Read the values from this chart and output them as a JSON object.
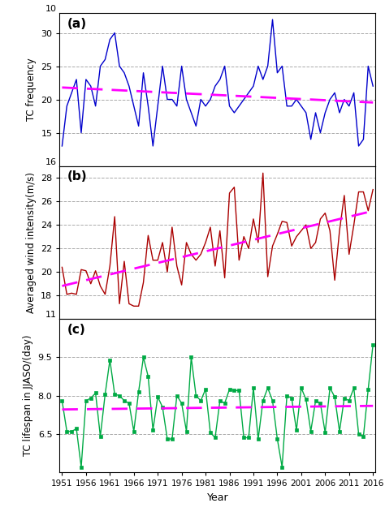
{
  "years": [
    1951,
    1952,
    1953,
    1954,
    1955,
    1956,
    1957,
    1958,
    1959,
    1960,
    1961,
    1962,
    1963,
    1964,
    1965,
    1966,
    1967,
    1968,
    1969,
    1970,
    1971,
    1972,
    1973,
    1974,
    1975,
    1976,
    1977,
    1978,
    1979,
    1980,
    1981,
    1982,
    1983,
    1984,
    1985,
    1986,
    1987,
    1988,
    1989,
    1990,
    1991,
    1992,
    1993,
    1994,
    1995,
    1996,
    1997,
    1998,
    1999,
    2000,
    2001,
    2002,
    2003,
    2004,
    2005,
    2006,
    2007,
    2008,
    2009,
    2010,
    2011,
    2012,
    2013,
    2014,
    2015,
    2016
  ],
  "tc_freq": [
    13,
    19,
    21,
    23,
    15,
    23,
    22,
    19,
    25,
    26,
    29,
    30,
    25,
    24,
    22,
    19,
    16,
    24,
    19,
    13,
    19,
    25,
    20,
    20,
    19,
    25,
    20,
    18,
    16,
    20,
    19,
    20,
    22,
    23,
    25,
    19,
    18,
    19,
    20,
    21,
    22,
    25,
    23,
    25,
    32,
    24,
    25,
    19,
    19,
    20,
    19,
    18,
    14,
    18,
    15,
    18,
    20,
    21,
    18,
    20,
    19,
    21,
    13,
    14,
    25,
    22
  ],
  "wind_intensity": [
    20.4,
    18.1,
    18.2,
    18.1,
    20.2,
    20.1,
    19.0,
    20.1,
    18.8,
    18.1,
    20.5,
    24.7,
    17.3,
    20.9,
    17.3,
    17.1,
    17.1,
    19.1,
    23.1,
    21.0,
    21.0,
    22.5,
    20.0,
    23.8,
    20.5,
    18.9,
    22.5,
    21.5,
    21.0,
    21.5,
    22.5,
    23.8,
    20.5,
    23.5,
    19.5,
    26.7,
    27.2,
    21.0,
    23.0,
    22.0,
    24.5,
    22.5,
    28.4,
    19.6,
    22.2,
    23.2,
    24.3,
    24.2,
    22.2,
    23.0,
    23.5,
    24.0,
    22.0,
    22.5,
    24.5,
    25.0,
    23.5,
    19.3,
    23.5,
    26.5,
    21.5,
    24.0,
    26.8,
    26.8,
    25.2,
    27.0
  ],
  "tc_lifespan": [
    7.8,
    6.6,
    6.6,
    6.7,
    5.2,
    7.8,
    7.9,
    8.1,
    6.4,
    8.05,
    9.4,
    8.05,
    8.0,
    7.8,
    7.7,
    6.6,
    8.15,
    9.5,
    8.75,
    6.65,
    7.95,
    7.55,
    6.3,
    6.3,
    8.0,
    7.7,
    6.6,
    9.5,
    8.0,
    7.8,
    8.25,
    6.55,
    6.35,
    7.8,
    7.7,
    8.25,
    8.2,
    8.2,
    6.35,
    6.35,
    8.3,
    6.3,
    7.8,
    8.3,
    7.8,
    6.3,
    5.2,
    8.0,
    7.9,
    6.65,
    8.3,
    7.85,
    6.6,
    7.8,
    7.7,
    6.55,
    8.3,
    7.95,
    6.6,
    7.9,
    7.8,
    8.3,
    6.5,
    6.4,
    8.25,
    10.0
  ],
  "panel_a_ylim": [
    10,
    33
  ],
  "panel_a_yticks": [
    15,
    20,
    25,
    30
  ],
  "panel_a_ytop_label": "10",
  "panel_b_ylim": [
    16,
    29
  ],
  "panel_b_yticks": [
    18,
    20,
    22,
    24,
    26,
    28
  ],
  "panel_b_ytop_label": "16",
  "panel_c_ylim": [
    5,
    11
  ],
  "panel_c_yticks": [
    6.5,
    8.0,
    9.5
  ],
  "panel_c_ytop_label": "11",
  "xticks": [
    1951,
    1956,
    1961,
    1966,
    1971,
    1976,
    1981,
    1986,
    1991,
    1996,
    2001,
    2006,
    2011,
    2016
  ],
  "color_a": "#0000CC",
  "color_b": "#AA0000",
  "color_c": "#00AA44",
  "trend_color": "#FF00FF",
  "marker_c": "s",
  "grid_color": "#AAAAAA",
  "fig_bg": "#FFFFFF"
}
